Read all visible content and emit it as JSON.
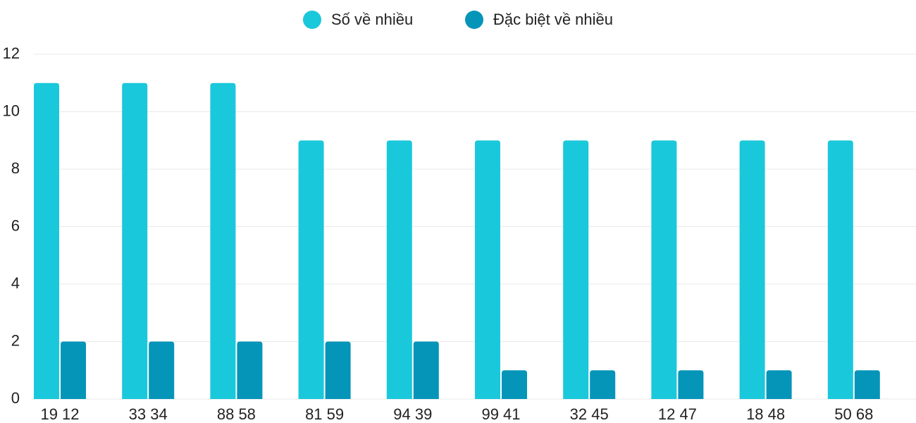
{
  "chart_data": {
    "type": "bar",
    "categories": [
      "19 12",
      "33 34",
      "88 58",
      "81 59",
      "94 39",
      "99 41",
      "32 45",
      "12 47",
      "18 48",
      "50 68"
    ],
    "series": [
      {
        "name": "Số về nhiều",
        "color": "#1ac8db",
        "values": [
          11,
          11,
          11,
          9,
          9,
          9,
          9,
          9,
          9,
          9
        ]
      },
      {
        "name": "Đặc biệt về nhiều",
        "color": "#0595b8",
        "values": [
          2,
          2,
          2,
          2,
          2,
          1,
          1,
          1,
          1,
          1
        ]
      }
    ],
    "ylim": [
      0,
      12
    ],
    "yticks": [
      0,
      2,
      4,
      6,
      8,
      10,
      12
    ],
    "grid": true,
    "legend": "top"
  }
}
